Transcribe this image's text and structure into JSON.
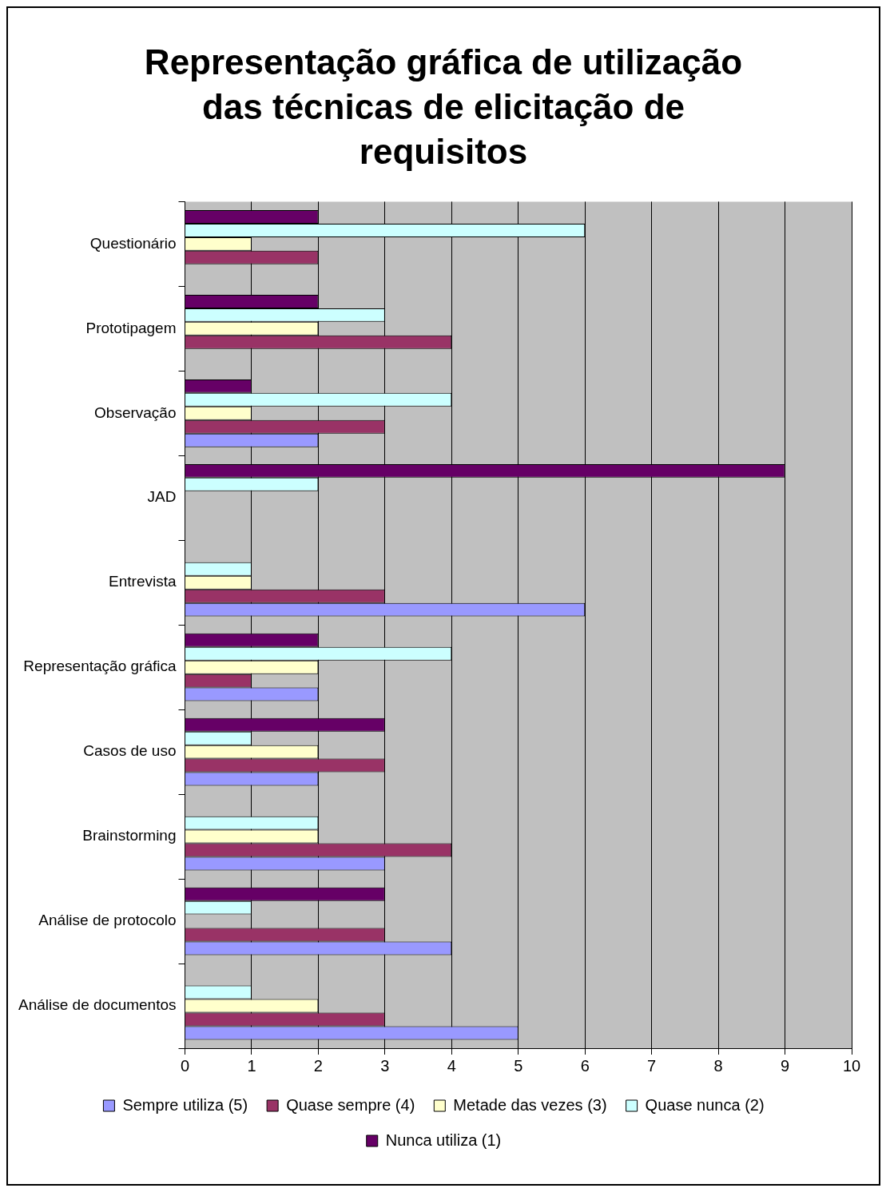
{
  "chart_data": {
    "type": "bar",
    "orientation": "horizontal",
    "title": "Representação gráfica de utilização das técnicas de elicitação de requisitos",
    "categories": [
      "Questionário",
      "Prototipagem",
      "Observação",
      "JAD",
      "Entrevista",
      "Representação gráfica",
      "Casos de uso",
      "Brainstorming",
      "Análise de protocolo",
      "Análise de documentos"
    ],
    "series": [
      {
        "name": "Sempre utiliza (5)",
        "color": "#9999ff",
        "values": [
          0,
          0,
          2,
          0,
          6,
          2,
          2,
          3,
          4,
          5
        ]
      },
      {
        "name": "Quase sempre (4)",
        "color": "#993366",
        "values": [
          2,
          4,
          3,
          0,
          3,
          1,
          3,
          4,
          3,
          3
        ]
      },
      {
        "name": "Metade das vezes (3)",
        "color": "#ffffcc",
        "values": [
          1,
          2,
          1,
          0,
          1,
          2,
          2,
          2,
          0,
          2
        ]
      },
      {
        "name": "Quase nunca (2)",
        "color": "#ccffff",
        "values": [
          6,
          3,
          4,
          2,
          1,
          4,
          1,
          2,
          1,
          1
        ]
      },
      {
        "name": "Nunca utiliza (1)",
        "color": "#660066",
        "values": [
          2,
          2,
          1,
          9,
          0,
          2,
          3,
          0,
          3,
          0
        ]
      }
    ],
    "xlim": [
      0,
      10
    ],
    "xticks": [
      0,
      1,
      2,
      3,
      4,
      5,
      6,
      7,
      8,
      9,
      10
    ],
    "grid": "x",
    "legend": "bottom"
  }
}
